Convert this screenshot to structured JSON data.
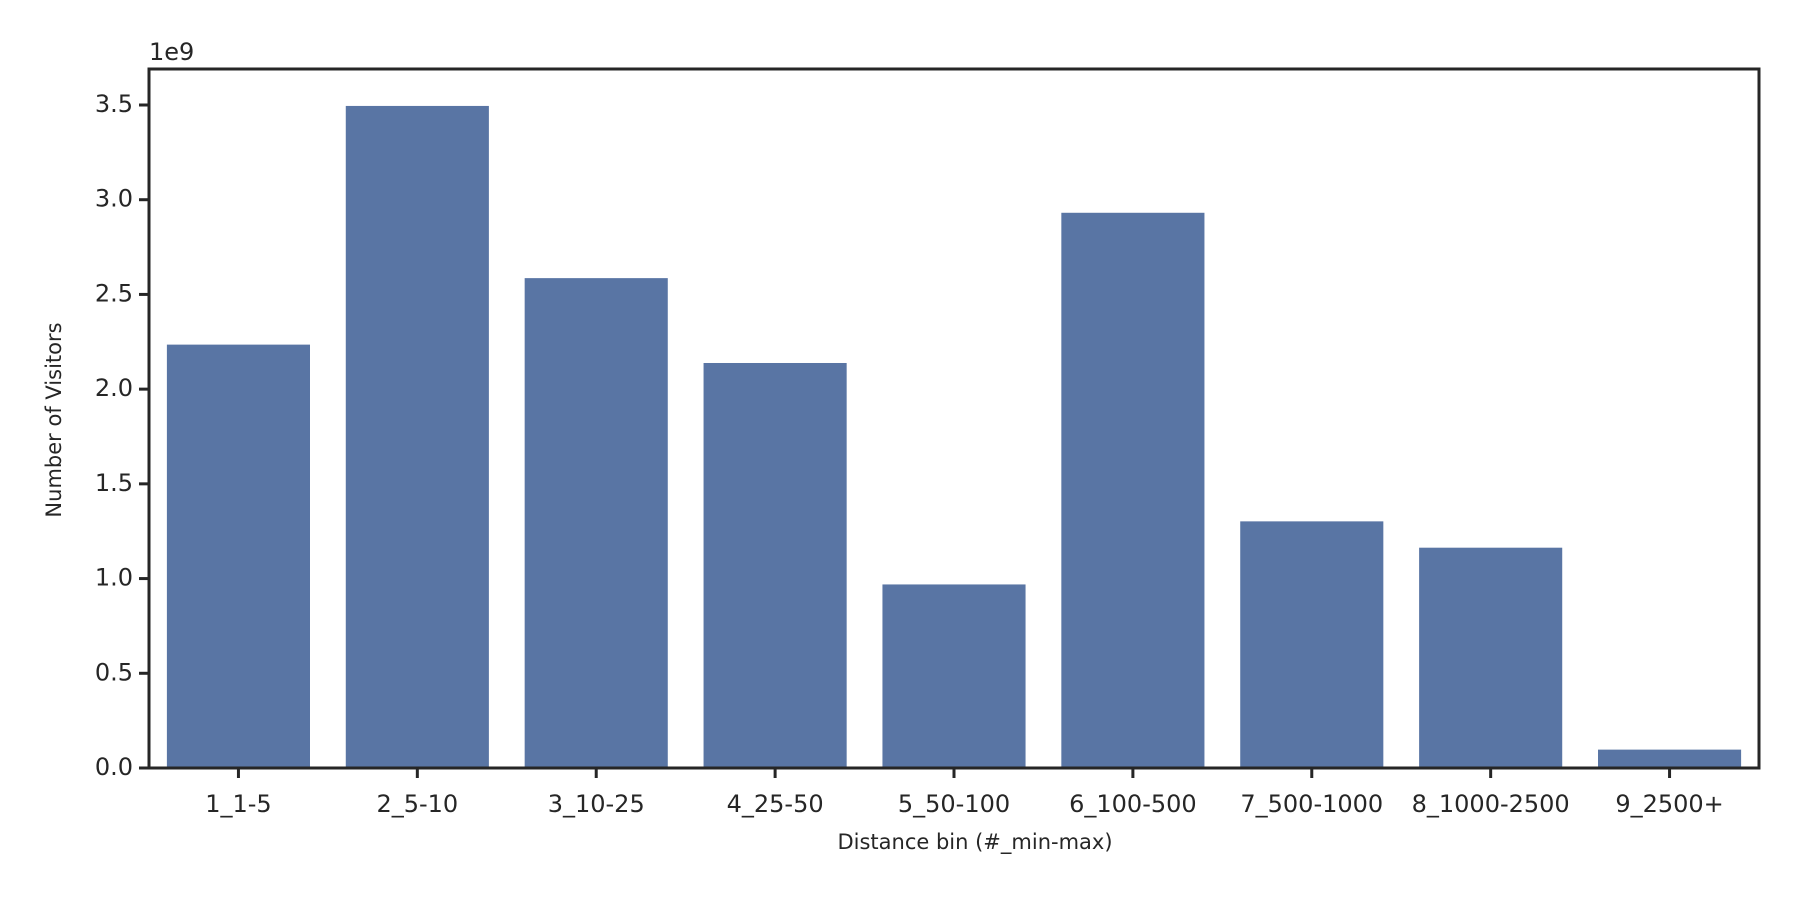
{
  "chart_data": {
    "type": "bar",
    "x_label": "Distance bin (#_min-max)",
    "y_label": "Number of Visitors",
    "y_offset_label": "1e9",
    "categories": [
      "1_1-5",
      "2_5-10",
      "3_10-25",
      "4_25-50",
      "5_50-100",
      "6_100-500",
      "7_500-1000",
      "8_1000-2500",
      "9_2500+"
    ],
    "values": [
      2.235,
      3.495,
      2.586,
      2.138,
      0.969,
      2.931,
      1.302,
      1.163,
      0.097
    ],
    "color": "#5975a4",
    "ylim": [
      0,
      3.69
    ],
    "yticks": [
      {
        "value": 0,
        "label": "0.0"
      },
      0.5,
      {
        "value": 1,
        "label": "1.0"
      },
      1.5,
      {
        "value": 2,
        "label": "2.0"
      },
      2.5,
      {
        "value": 3,
        "label": "3.0"
      },
      3.5
    ],
    "grid": false
  }
}
